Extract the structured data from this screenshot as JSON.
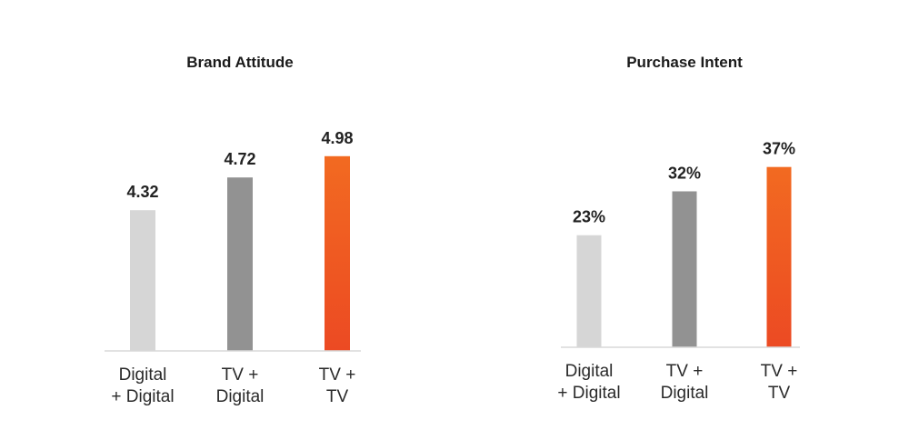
{
  "chart_data": [
    {
      "type": "bar",
      "title": "Brand Attitude",
      "categories": [
        [
          "Digital",
          "+ Digital"
        ],
        [
          "TV +",
          "Digital"
        ],
        [
          "TV +",
          "TV"
        ]
      ],
      "values": [
        4.32,
        4.72,
        4.98
      ],
      "labels": [
        "4.32",
        "4.72",
        "4.98"
      ],
      "ylim": [
        2.6,
        5.6
      ],
      "xlabel": "",
      "ylabel": "",
      "grid": false
    },
    {
      "type": "bar",
      "title": "Purchase Intent",
      "categories": [
        [
          "Digital",
          "+ Digital"
        ],
        [
          "TV +",
          "Digital"
        ],
        [
          "TV +",
          "TV"
        ]
      ],
      "values": [
        23,
        32,
        37
      ],
      "labels": [
        "23%",
        "32%",
        "37%"
      ],
      "ylim": [
        0,
        50
      ],
      "xlabel": "",
      "ylabel": "",
      "grid": false
    }
  ],
  "colors": {
    "bar_digital_digital": "#d6d6d6",
    "bar_tv_digital": "#929292",
    "bar_tv_tv_top": "#f26a21",
    "bar_tv_tv_bottom": "#ec4a23",
    "axis": "#d9d9d9"
  }
}
